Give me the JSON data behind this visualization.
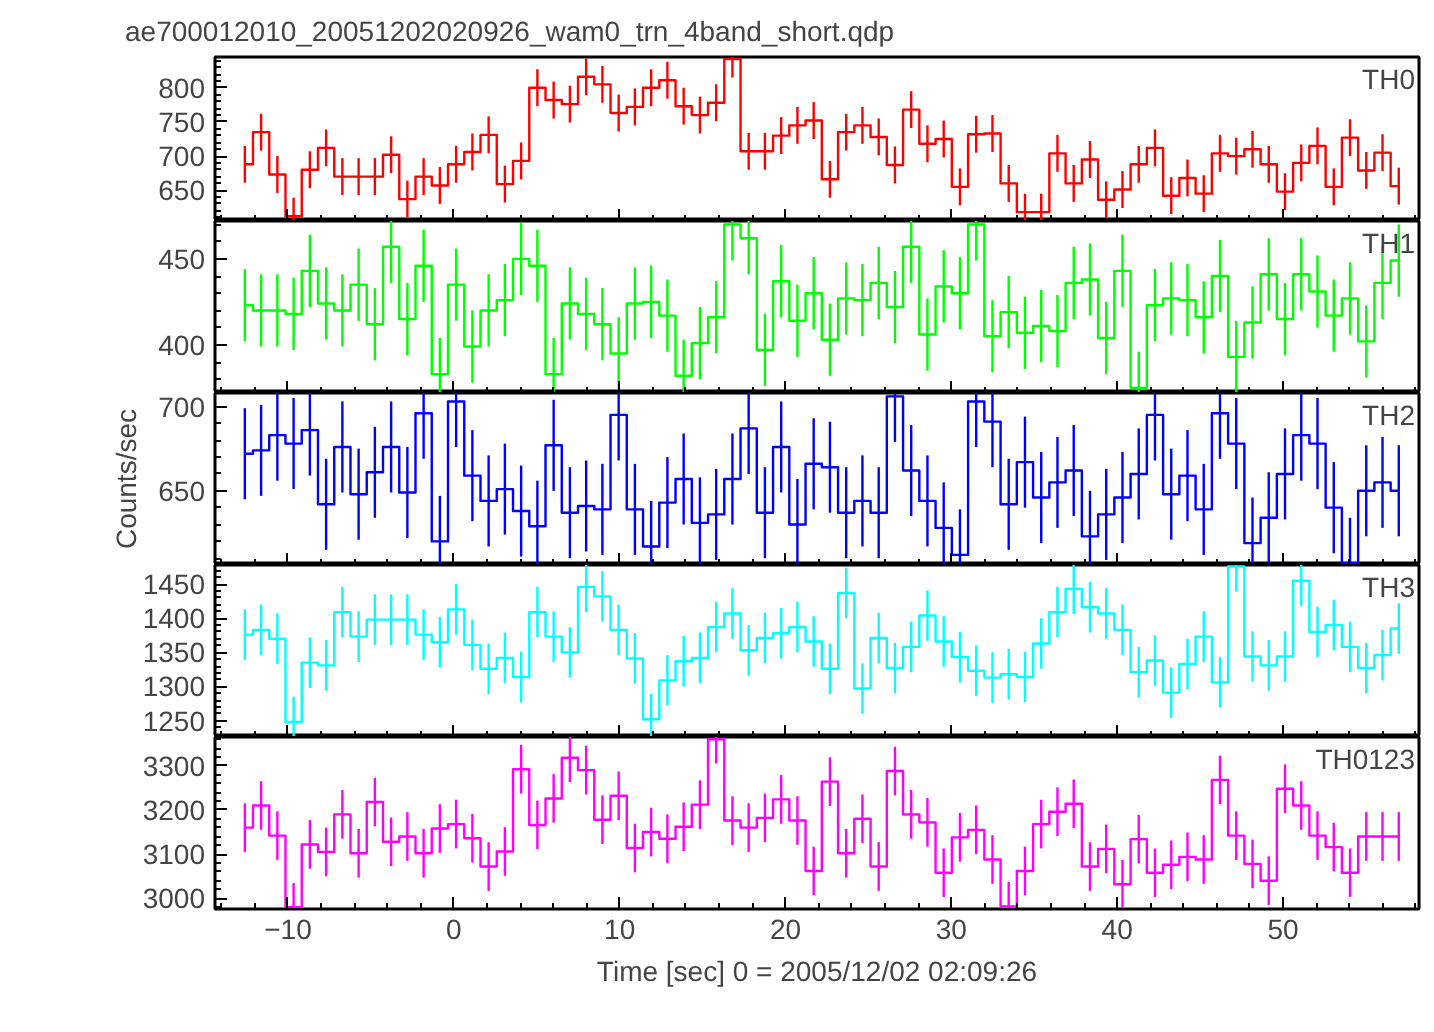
{
  "chart_data": [
    {
      "type": "step",
      "title": "ae700012010_20051202020926_wam0_trn_4band_short.qdp",
      "annotations": [
        "TH0"
      ],
      "tick_labels": "y",
      "xlim": [
        -14.4,
        58.2
      ],
      "xticks": [
        -10,
        0,
        10,
        20,
        30,
        40,
        50
      ],
      "ylim": [
        605,
        845
      ],
      "yticks": [
        650,
        700,
        750,
        800
      ],
      "x": [
        -12.6,
        -11.62,
        -10.64,
        -9.66,
        -8.68,
        -7.7,
        -6.72,
        -5.74,
        -4.76,
        -3.78,
        -2.8,
        -1.82,
        -0.84,
        0.14,
        1.12,
        2.1,
        3.08,
        4.06,
        5.04,
        6.02,
        7.0,
        7.98,
        8.96,
        9.94,
        10.92,
        11.9,
        12.88,
        13.86,
        14.84,
        15.82,
        16.8,
        17.78,
        18.76,
        19.74,
        20.72,
        21.7,
        22.68,
        23.66,
        24.64,
        25.62,
        26.6,
        27.58,
        28.56,
        29.54,
        30.52,
        31.5,
        32.48,
        33.46,
        34.44,
        35.42,
        36.4,
        37.38,
        38.36,
        39.34,
        40.32,
        41.3,
        42.28,
        43.26,
        44.24,
        45.22,
        46.2,
        47.18,
        48.16,
        49.14,
        50.12,
        51.1,
        52.08,
        53.06,
        54.04,
        55.02,
        56.0,
        56.98
      ],
      "series": [
        {
          "color": "#ff0000",
          "values": [
            688,
            735,
            673,
            612,
            680,
            712,
            670,
            670,
            670,
            702,
            637,
            670,
            657,
            688,
            706,
            731,
            659,
            693,
            800,
            782,
            776,
            816,
            805,
            763,
            772,
            800,
            811,
            773,
            760,
            778,
            842,
            707,
            707,
            730,
            745,
            752,
            666,
            735,
            745,
            728,
            687,
            768,
            718,
            725,
            655,
            732,
            733,
            660,
            618,
            618,
            704,
            660,
            695,
            636,
            651,
            688,
            712,
            642,
            668,
            645,
            704,
            700,
            710,
            688,
            648,
            690,
            715,
            655,
            727,
            679,
            705,
            656
          ],
          "errors": [
            27,
            27,
            27,
            27,
            27,
            27,
            27,
            27,
            27,
            27,
            27,
            27,
            27,
            27,
            27,
            27,
            27,
            27,
            27,
            27,
            27,
            27,
            27,
            27,
            27,
            27,
            27,
            27,
            27,
            27,
            27,
            27,
            27,
            27,
            27,
            27,
            27,
            27,
            27,
            27,
            27,
            27,
            27,
            27,
            27,
            27,
            27,
            27,
            27,
            27,
            27,
            27,
            27,
            27,
            27,
            27,
            27,
            27,
            27,
            27,
            27,
            27,
            27,
            27,
            27,
            27,
            27,
            27,
            27,
            27,
            27,
            27
          ]
        }
      ]
    },
    {
      "type": "step",
      "annotations": [
        "TH1"
      ],
      "tick_labels": "y",
      "xlim": [
        -14.4,
        58.2
      ],
      "xticks": [
        -10,
        0,
        10,
        20,
        30,
        40,
        50
      ],
      "ylim": [
        372,
        472
      ],
      "yticks": [
        400,
        450
      ],
      "x": [
        -12.6,
        -11.62,
        -10.64,
        -9.66,
        -8.68,
        -7.7,
        -6.72,
        -5.74,
        -4.76,
        -3.78,
        -2.8,
        -1.82,
        -0.84,
        0.14,
        1.12,
        2.1,
        3.08,
        4.06,
        5.04,
        6.02,
        7.0,
        7.98,
        8.96,
        9.94,
        10.92,
        11.9,
        12.88,
        13.86,
        14.84,
        15.82,
        16.8,
        17.78,
        18.76,
        19.74,
        20.72,
        21.7,
        22.68,
        23.66,
        24.64,
        25.62,
        26.6,
        27.58,
        28.56,
        29.54,
        30.52,
        31.5,
        32.48,
        33.46,
        34.44,
        35.42,
        36.4,
        37.38,
        38.36,
        39.34,
        40.32,
        41.3,
        42.28,
        43.26,
        44.24,
        45.22,
        46.2,
        47.18,
        48.16,
        49.14,
        50.12,
        51.1,
        52.08,
        53.06,
        54.04,
        55.02,
        56.0,
        56.98
      ],
      "series": [
        {
          "color": "#00ff00",
          "values": [
            423,
            420,
            420,
            418,
            443,
            424,
            420,
            435,
            412,
            457,
            415,
            446,
            383,
            435,
            399,
            420,
            426,
            450,
            446,
            383,
            424,
            418,
            412,
            395,
            424,
            425,
            417,
            382,
            401,
            416,
            470,
            462,
            397,
            437,
            414,
            430,
            403,
            427,
            426,
            436,
            422,
            457,
            406,
            434,
            430,
            470,
            405,
            419,
            407,
            411,
            408,
            436,
            438,
            404,
            443,
            375,
            423,
            427,
            426,
            416,
            440,
            393,
            413,
            441,
            415,
            441,
            431,
            417,
            427,
            402,
            436,
            449
          ],
          "errors": [
            21,
            21,
            21,
            21,
            21,
            21,
            21,
            21,
            21,
            21,
            21,
            21,
            21,
            21,
            21,
            21,
            21,
            21,
            21,
            21,
            21,
            21,
            21,
            21,
            21,
            21,
            21,
            21,
            21,
            21,
            21,
            21,
            21,
            21,
            21,
            21,
            21,
            21,
            21,
            21,
            21,
            21,
            21,
            21,
            21,
            21,
            21,
            21,
            21,
            21,
            21,
            21,
            21,
            21,
            21,
            21,
            21,
            21,
            21,
            21,
            21,
            21,
            21,
            21,
            21,
            21,
            21,
            21,
            21,
            21,
            21,
            21
          ]
        }
      ]
    },
    {
      "type": "step",
      "ylabel": "Counts/sec",
      "annotations": [
        "TH2"
      ],
      "tick_labels": "y",
      "xlim": [
        -14.4,
        58.2
      ],
      "xticks": [
        -10,
        0,
        10,
        20,
        30,
        40,
        50
      ],
      "ylim": [
        606,
        708
      ],
      "yticks": [
        650,
        700
      ],
      "x": [
        -12.6,
        -11.62,
        -10.64,
        -9.66,
        -8.68,
        -7.7,
        -6.72,
        -5.74,
        -4.76,
        -3.78,
        -2.8,
        -1.82,
        -0.84,
        0.14,
        1.12,
        2.1,
        3.08,
        4.06,
        5.04,
        6.02,
        7.0,
        7.98,
        8.96,
        9.94,
        10.92,
        11.9,
        12.88,
        13.86,
        14.84,
        15.82,
        16.8,
        17.78,
        18.76,
        19.74,
        20.72,
        21.7,
        22.68,
        23.66,
        24.64,
        25.62,
        26.6,
        27.58,
        28.56,
        29.54,
        30.52,
        31.5,
        32.48,
        33.46,
        34.44,
        35.42,
        36.4,
        37.38,
        38.36,
        39.34,
        40.32,
        41.3,
        42.28,
        43.26,
        44.24,
        45.22,
        46.2,
        47.18,
        48.16,
        49.14,
        50.12,
        51.1,
        52.08,
        53.06,
        54.04,
        55.02,
        56.0,
        56.98
      ],
      "series": [
        {
          "color": "#0000ff",
          "values": [
            672,
            674,
            683,
            678,
            686,
            642,
            676,
            648,
            661,
            676,
            649,
            696,
            620,
            703,
            659,
            644,
            651,
            638,
            629,
            677,
            637,
            641,
            639,
            695,
            639,
            617,
            643,
            657,
            631,
            636,
            657,
            687,
            637,
            676,
            630,
            666,
            664,
            637,
            644,
            637,
            706,
            662,
            644,
            628,
            612,
            703,
            691,
            642,
            667,
            646,
            655,
            662,
            623,
            636,
            646,
            660,
            695,
            648,
            659,
            639,
            696,
            678,
            619,
            634,
            660,
            683,
            678,
            640,
            607,
            650,
            655,
            650
          ],
          "errors": [
            27,
            27,
            27,
            27,
            27,
            27,
            27,
            27,
            27,
            27,
            27,
            27,
            27,
            27,
            27,
            27,
            27,
            27,
            27,
            27,
            27,
            27,
            27,
            27,
            27,
            27,
            27,
            27,
            27,
            27,
            27,
            27,
            27,
            27,
            27,
            27,
            27,
            27,
            27,
            27,
            27,
            27,
            27,
            27,
            27,
            27,
            27,
            27,
            27,
            27,
            27,
            27,
            27,
            27,
            27,
            27,
            27,
            27,
            27,
            27,
            27,
            27,
            27,
            27,
            27,
            27,
            27,
            27,
            27,
            27,
            27,
            27
          ]
        }
      ]
    },
    {
      "type": "step",
      "annotations": [
        "TH3"
      ],
      "tick_labels": "y",
      "xlim": [
        -14.4,
        58.2
      ],
      "xticks": [
        -10,
        0,
        10,
        20,
        30,
        40,
        50
      ],
      "ylim": [
        1226,
        1478
      ],
      "yticks": [
        1250,
        1300,
        1350,
        1400,
        1450
      ],
      "x": [
        -12.6,
        -11.62,
        -10.64,
        -9.66,
        -8.68,
        -7.7,
        -6.72,
        -5.74,
        -4.76,
        -3.78,
        -2.8,
        -1.82,
        -0.84,
        0.14,
        1.12,
        2.1,
        3.08,
        4.06,
        5.04,
        6.02,
        7.0,
        7.98,
        8.96,
        9.94,
        10.92,
        11.9,
        12.88,
        13.86,
        14.84,
        15.82,
        16.8,
        17.78,
        18.76,
        19.74,
        20.72,
        21.7,
        22.68,
        23.66,
        24.64,
        25.62,
        26.6,
        27.58,
        28.56,
        29.54,
        30.52,
        31.5,
        32.48,
        33.46,
        34.44,
        35.42,
        36.4,
        37.38,
        38.36,
        39.34,
        40.32,
        41.3,
        42.28,
        43.26,
        44.24,
        45.22,
        46.2,
        47.18,
        48.16,
        49.14,
        50.12,
        51.1,
        52.08,
        53.06,
        54.04,
        55.02,
        56.0,
        56.98
      ],
      "series": [
        {
          "color": "#00ffff",
          "values": [
            1376,
            1383,
            1370,
            1248,
            1335,
            1331,
            1409,
            1373,
            1398,
            1398,
            1398,
            1376,
            1365,
            1413,
            1361,
            1326,
            1342,
            1314,
            1409,
            1373,
            1350,
            1446,
            1432,
            1383,
            1341,
            1252,
            1309,
            1337,
            1342,
            1387,
            1407,
            1353,
            1371,
            1378,
            1387,
            1366,
            1326,
            1437,
            1297,
            1371,
            1327,
            1358,
            1404,
            1366,
            1343,
            1323,
            1313,
            1318,
            1314,
            1363,
            1409,
            1443,
            1416,
            1407,
            1383,
            1321,
            1338,
            1291,
            1333,
            1373,
            1306,
            1476,
            1344,
            1331,
            1344,
            1455,
            1380,
            1390,
            1358,
            1327,
            1346,
            1385
          ],
          "errors": [
            37,
            37,
            37,
            37,
            37,
            37,
            37,
            37,
            37,
            37,
            37,
            37,
            37,
            37,
            37,
            37,
            37,
            37,
            37,
            37,
            37,
            37,
            37,
            37,
            37,
            37,
            37,
            37,
            37,
            37,
            37,
            37,
            37,
            37,
            37,
            37,
            37,
            37,
            37,
            37,
            37,
            37,
            37,
            37,
            37,
            37,
            37,
            37,
            37,
            37,
            37,
            37,
            37,
            37,
            37,
            37,
            37,
            37,
            37,
            37,
            37,
            37,
            37,
            37,
            37,
            37,
            37,
            37,
            37,
            37,
            37,
            37
          ]
        }
      ]
    },
    {
      "type": "step",
      "xlabel": "Time [sec] 0 = 2005/12/02 02:09:26",
      "annotations": [
        "TH0123"
      ],
      "xlim": [
        -14.4,
        58.2
      ],
      "xticks": [
        -10,
        0,
        10,
        20,
        30,
        40,
        50
      ],
      "ylim": [
        2976,
        3365
      ],
      "yticks": [
        3000,
        3100,
        3200,
        3300
      ],
      "x": [
        -12.6,
        -11.62,
        -10.64,
        -9.66,
        -8.68,
        -7.7,
        -6.72,
        -5.74,
        -4.76,
        -3.78,
        -2.8,
        -1.82,
        -0.84,
        0.14,
        1.12,
        2.1,
        3.08,
        4.06,
        5.04,
        6.02,
        7.0,
        7.98,
        8.96,
        9.94,
        10.92,
        11.9,
        12.88,
        13.86,
        14.84,
        15.82,
        16.8,
        17.78,
        18.76,
        19.74,
        20.72,
        21.7,
        22.68,
        23.66,
        24.64,
        25.62,
        26.6,
        27.58,
        28.56,
        29.54,
        30.52,
        31.5,
        32.48,
        33.46,
        34.44,
        35.42,
        36.4,
        37.38,
        38.36,
        39.34,
        40.32,
        41.3,
        42.28,
        43.26,
        44.24,
        45.22,
        46.2,
        47.18,
        48.16,
        49.14,
        50.12,
        51.1,
        52.08,
        53.06,
        54.04,
        55.02,
        56.0,
        56.98
      ],
      "series": [
        {
          "color": "#ff00ff",
          "values": [
            3160,
            3210,
            3142,
            2980,
            3122,
            3105,
            3190,
            3102,
            3218,
            3128,
            3140,
            3102,
            3158,
            3168,
            3136,
            3072,
            3106,
            3292,
            3166,
            3226,
            3318,
            3290,
            3178,
            3232,
            3114,
            3150,
            3135,
            3162,
            3212,
            3360,
            3176,
            3160,
            3182,
            3224,
            3176,
            3062,
            3264,
            3102,
            3180,
            3072,
            3288,
            3190,
            3172,
            3058,
            3138,
            3155,
            3088,
            2982,
            3062,
            3168,
            3196,
            3214,
            3072,
            3112,
            3032,
            3134,
            3058,
            3076,
            3094,
            3088,
            3268,
            3142,
            3078,
            3040,
            3248,
            3210,
            3142,
            3116,
            3058,
            3140,
            3140,
            3140
          ],
          "errors": [
            55,
            55,
            55,
            55,
            55,
            55,
            55,
            55,
            55,
            55,
            55,
            55,
            55,
            55,
            55,
            55,
            55,
            55,
            55,
            55,
            55,
            55,
            55,
            55,
            55,
            55,
            55,
            55,
            55,
            55,
            55,
            55,
            55,
            55,
            55,
            55,
            55,
            55,
            55,
            55,
            55,
            55,
            55,
            55,
            55,
            55,
            55,
            55,
            55,
            55,
            55,
            55,
            55,
            55,
            55,
            55,
            55,
            55,
            55,
            55,
            55,
            55,
            55,
            55,
            55,
            55,
            55,
            55,
            55,
            55,
            55,
            55
          ]
        }
      ]
    }
  ]
}
